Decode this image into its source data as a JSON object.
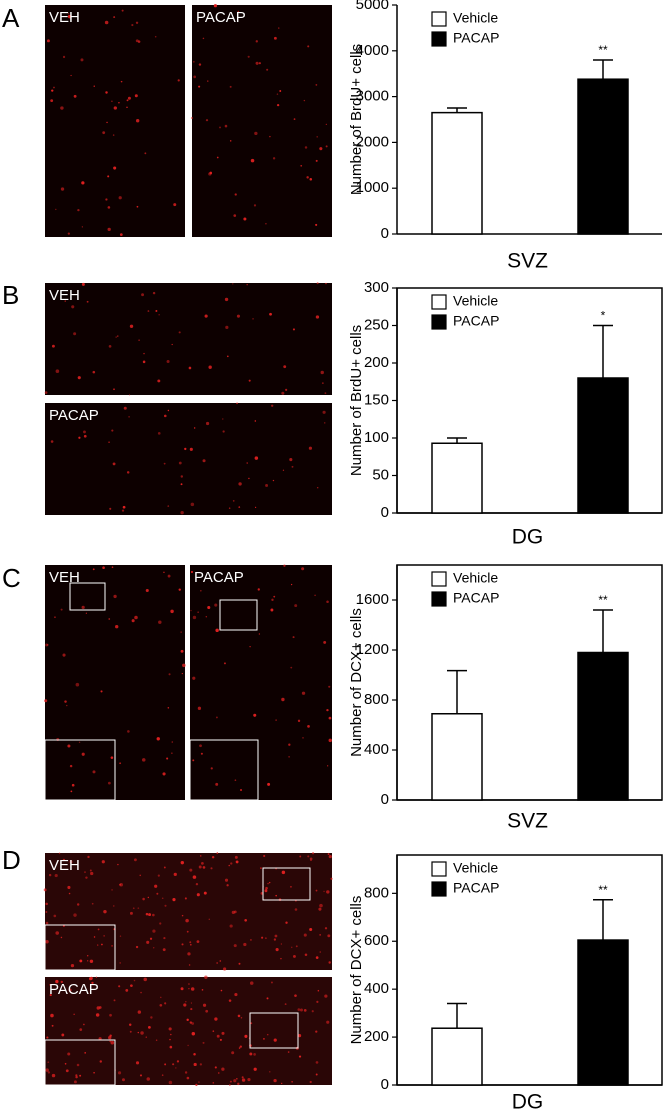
{
  "chart_data": [
    {
      "type": "bar",
      "panel": "A",
      "image_labels": [
        "VEH",
        "PACAP"
      ],
      "ylabel": "Number of BrdU+ cells",
      "xlabel": "SVZ",
      "series": [
        {
          "name": "Vehicle",
          "color": "#ffffff",
          "values": [
            2650
          ],
          "errors": [
            100
          ]
        },
        {
          "name": "PACAP",
          "color": "#000000",
          "values": [
            3380
          ],
          "errors": [
            420
          ]
        }
      ],
      "annotations": [
        "**"
      ],
      "ylim": [
        0,
        5000
      ],
      "yticks": [
        0,
        1000,
        2000,
        3000,
        4000,
        5000
      ],
      "frame": false
    },
    {
      "type": "bar",
      "panel": "B",
      "image_labels": [
        "VEH",
        "PACAP"
      ],
      "ylabel": "Number of BrdU+ cells",
      "xlabel": "DG",
      "series": [
        {
          "name": "Vehicle",
          "color": "#ffffff",
          "values": [
            93
          ],
          "errors": [
            7
          ]
        },
        {
          "name": "PACAP",
          "color": "#000000",
          "values": [
            180
          ],
          "errors": [
            70
          ]
        }
      ],
      "annotations": [
        "*"
      ],
      "ylim": [
        0,
        300
      ],
      "yticks": [
        0,
        50,
        100,
        150,
        200,
        250,
        300
      ],
      "frame": true
    },
    {
      "type": "bar",
      "panel": "C",
      "image_labels": [
        "VEH",
        "PACAP"
      ],
      "ylabel": "Number of DCX+ cells",
      "xlabel": "SVZ",
      "series": [
        {
          "name": "Vehicle",
          "color": "#ffffff",
          "values": [
            690
          ],
          "errors": [
            345
          ]
        },
        {
          "name": "PACAP",
          "color": "#000000",
          "values": [
            1180
          ],
          "errors": [
            340
          ]
        }
      ],
      "annotations": [
        "**"
      ],
      "ylim": [
        0,
        1880
      ],
      "yticks": [
        0,
        400,
        800,
        1200,
        1600
      ],
      "frame": true
    },
    {
      "type": "bar",
      "panel": "D",
      "image_labels": [
        "VEH",
        "PACAP"
      ],
      "ylabel": "Number of DCX+ cells",
      "xlabel": "DG",
      "series": [
        {
          "name": "Vehicle",
          "color": "#ffffff",
          "values": [
            237
          ],
          "errors": [
            103
          ]
        },
        {
          "name": "PACAP",
          "color": "#000000",
          "values": [
            605
          ],
          "errors": [
            168
          ]
        }
      ],
      "annotations": [
        "**"
      ],
      "ylim": [
        0,
        960
      ],
      "yticks": [
        0,
        200,
        400,
        600,
        800
      ],
      "frame": true
    }
  ]
}
